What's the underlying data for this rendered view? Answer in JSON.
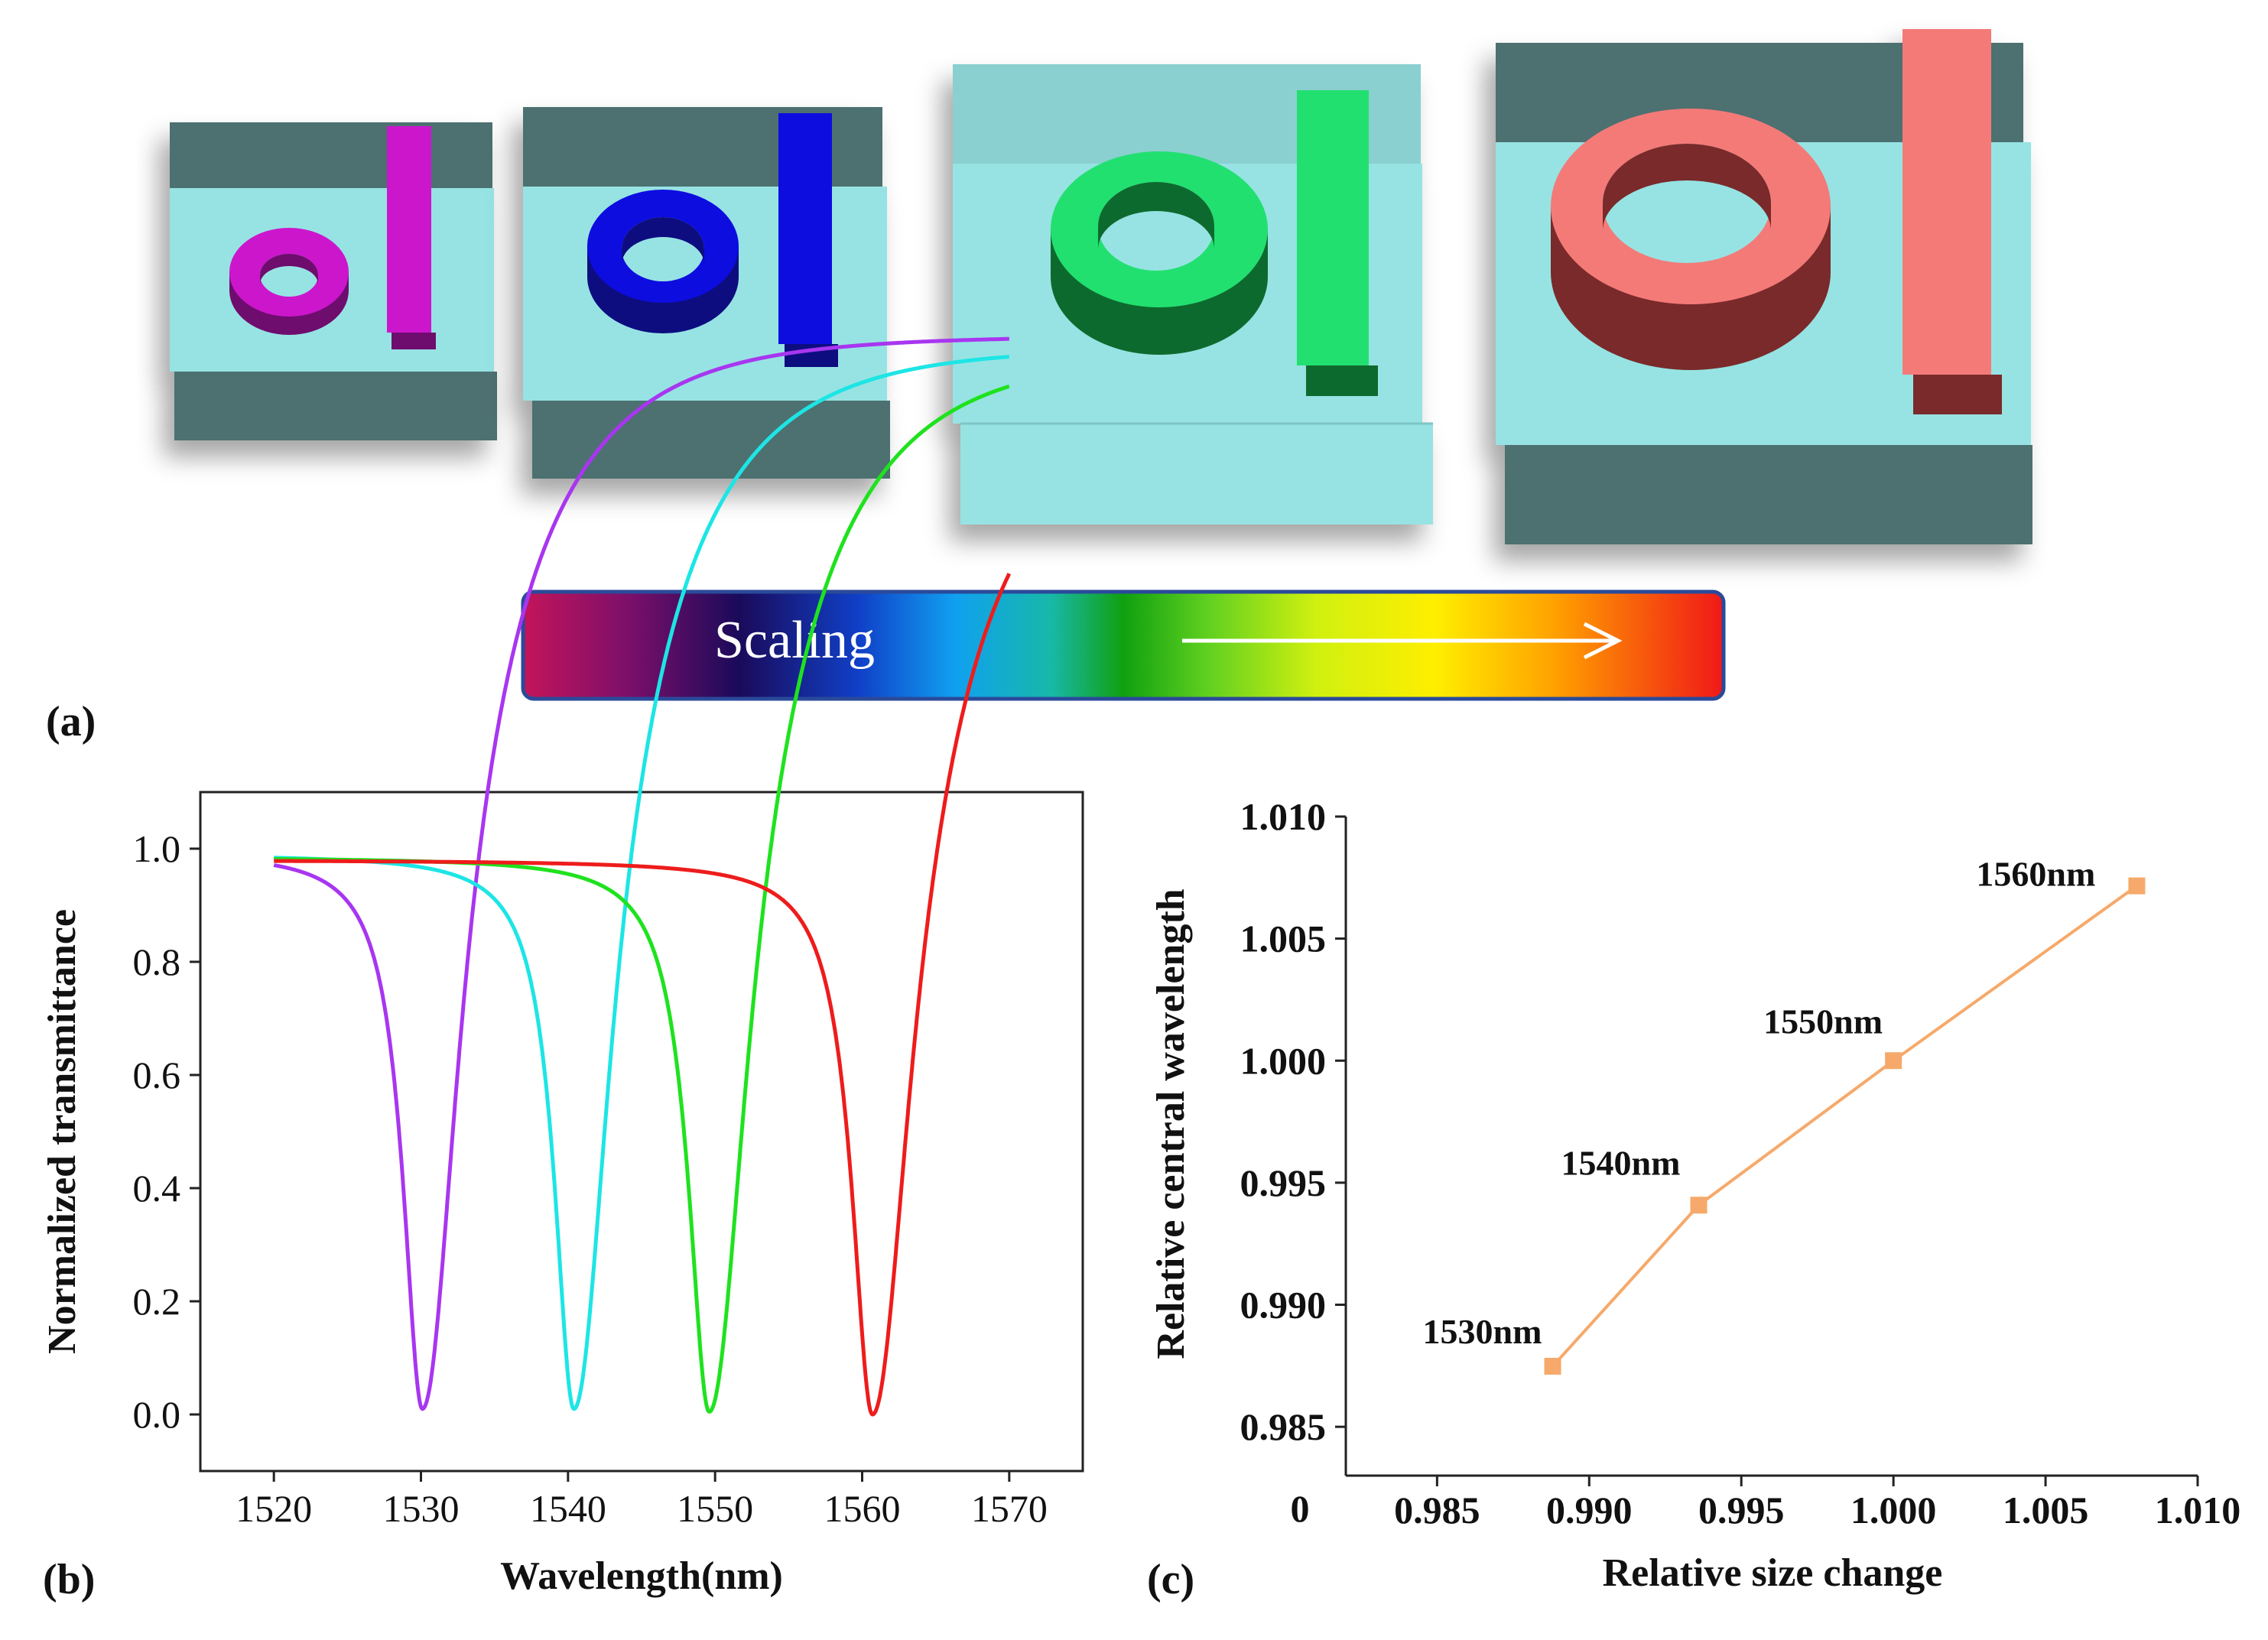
{
  "panel_labels": {
    "a": "(a)",
    "b": "(b)",
    "c": "(c)"
  },
  "scaling_bar": {
    "label": "Scaling"
  },
  "colors": {
    "device_magenta": "#cc16cc",
    "device_blue": "#1010e0",
    "device_green": "#20e070",
    "device_salmon": "#f47a78",
    "substrate_top": "#97e3e3",
    "substrate_side": "#4d6f6f",
    "line_c": "#f6a96a"
  },
  "chart_data": [
    {
      "id": "b",
      "type": "line",
      "xlabel": "Wavelength(nm)",
      "ylabel": "Normalized transmittance",
      "xlim": [
        1515,
        1575
      ],
      "ylim": [
        -0.1,
        1.1
      ],
      "xticks": [
        "1520",
        "1530",
        "1540",
        "1550",
        "1560",
        "1570"
      ],
      "yticks": [
        "0.0",
        "0.2",
        "0.4",
        "0.6",
        "0.8",
        "1.0"
      ],
      "x_range": [
        1520,
        1570
      ],
      "series": [
        {
          "name": "1530nm",
          "color": "#a836f0",
          "center": 1530.1,
          "width": 1.6,
          "baseline": 0.995,
          "tail": 0.955,
          "min": 0.01
        },
        {
          "name": "1540nm",
          "color": "#1de5e5",
          "center": 1540.4,
          "width": 1.6,
          "baseline": 0.99,
          "tail": 0.945,
          "min": 0.01
        },
        {
          "name": "1550nm",
          "color": "#1fe21f",
          "center": 1549.6,
          "width": 1.7,
          "baseline": 0.985,
          "tail": 0.94,
          "min": 0.005
        },
        {
          "name": "1560nm",
          "color": "#ee1c1c",
          "center": 1560.7,
          "width": 1.7,
          "baseline": 0.98,
          "tail": 0.9,
          "min": 0.0
        }
      ]
    },
    {
      "id": "c",
      "type": "line",
      "xlabel": "Relative size change",
      "ylabel": "Relative central wavelength",
      "xlim": [
        0.982,
        1.01
      ],
      "ylim": [
        0.983,
        1.01
      ],
      "xticks": [
        "0.985",
        "0.990",
        "0.995",
        "1.000",
        "1.005",
        "1.010"
      ],
      "yticks": [
        "0.985",
        "0.990",
        "0.995",
        "1.000",
        "1.005",
        "1.010"
      ],
      "origin_label": "0",
      "points": [
        {
          "x": 0.9888,
          "y": 0.98748,
          "label": "1530nm"
        },
        {
          "x": 0.9936,
          "y": 0.99408,
          "label": "1540nm"
        },
        {
          "x": 1.0,
          "y": 1.0,
          "label": "1550nm"
        },
        {
          "x": 1.008,
          "y": 1.00716,
          "label": "1560nm"
        }
      ]
    }
  ]
}
